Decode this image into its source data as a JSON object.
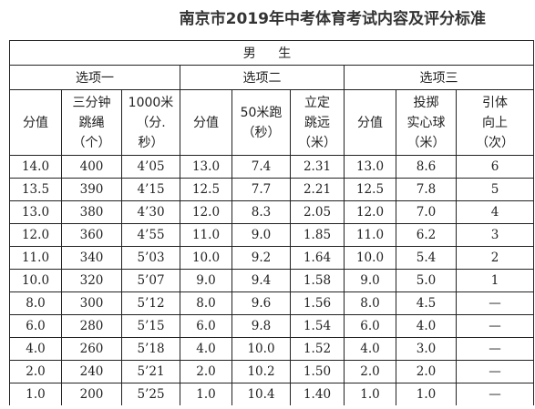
{
  "title": "南京市2019年中考体育考试内容及评分标准",
  "gender": "男 生",
  "options": [
    "选项一",
    "选项二",
    "选项三"
  ],
  "headers": [
    "分值",
    "三分钟\n跳绳\n（个）",
    "1000米\n（分.\n秒）",
    "分值",
    "50米跑\n（秒）",
    "立定\n跳远\n（米）",
    "分值",
    "投掷\n实心球\n（米）",
    "引体\n向上\n（次）"
  ],
  "rows": [
    [
      "14.0",
      "400",
      "4’05",
      "13.0",
      "7.4",
      "2.31",
      "13.0",
      "8.6",
      "6"
    ],
    [
      "13.5",
      "390",
      "4’15",
      "12.5",
      "7.7",
      "2.21",
      "12.5",
      "7.8",
      "5"
    ],
    [
      "13.0",
      "380",
      "4’30",
      "12.0",
      "8.3",
      "2.05",
      "12.0",
      "7.0",
      "4"
    ],
    [
      "12.0",
      "360",
      "4’55",
      "11.0",
      "9.0",
      "1.85",
      "11.0",
      "6.2",
      "3"
    ],
    [
      "11.0",
      "340",
      "5’03",
      "10.0",
      "9.2",
      "1.64",
      "10.0",
      "5.4",
      "2"
    ],
    [
      "10.0",
      "320",
      "5’07",
      "9.0",
      "9.4",
      "1.58",
      "9.0",
      "5.0",
      "1"
    ],
    [
      "8.0",
      "300",
      "5’12",
      "8.0",
      "9.6",
      "1.56",
      "8.0",
      "4.5",
      "—"
    ],
    [
      "6.0",
      "280",
      "5’15",
      "6.0",
      "9.8",
      "1.54",
      "6.0",
      "4.0",
      "—"
    ],
    [
      "4.0",
      "260",
      "5’18",
      "4.0",
      "10.0",
      "1.52",
      "4.0",
      "3.0",
      "—"
    ],
    [
      "2.0",
      "240",
      "5’21",
      "2.0",
      "10.2",
      "1.50",
      "2.0",
      "2.0",
      "—"
    ],
    [
      "1.0",
      "200",
      "5’25",
      "1.0",
      "10.4",
      "1.40",
      "1.0",
      "1.0",
      "—"
    ]
  ]
}
